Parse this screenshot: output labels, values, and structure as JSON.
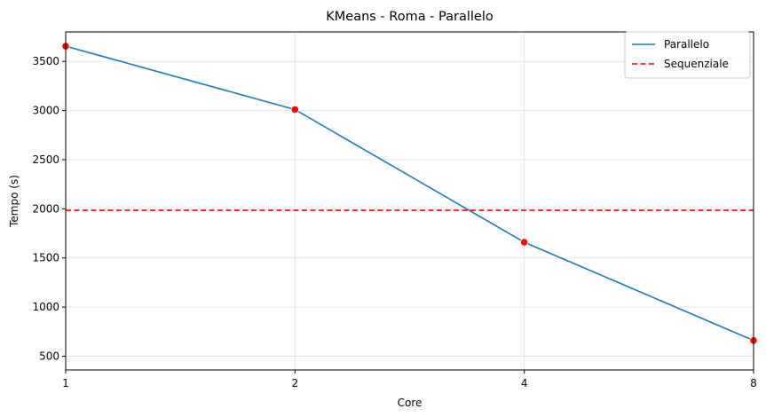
{
  "chart_data": {
    "type": "line",
    "title": "KMeans - Roma - Parallelo",
    "xlabel": "Core",
    "ylabel": "Tempo (s)",
    "categories": [
      "1",
      "2",
      "4",
      "8"
    ],
    "x_scale": "log2",
    "ylim": [
      360,
      3800
    ],
    "yticks": [
      500,
      1000,
      1500,
      2000,
      2500,
      3000,
      3500
    ],
    "grid": true,
    "legend_position": "top-right",
    "series": [
      {
        "name": "Parallelo",
        "type": "line",
        "color": "#1f77b4",
        "marker_color": "#ff0000",
        "x": [
          1,
          2,
          4,
          8
        ],
        "values": [
          3655,
          3010,
          1660,
          660
        ]
      },
      {
        "name": "Sequenziale",
        "type": "hline",
        "style": "dashed",
        "color": "#ff0000",
        "value": 1985
      }
    ]
  }
}
